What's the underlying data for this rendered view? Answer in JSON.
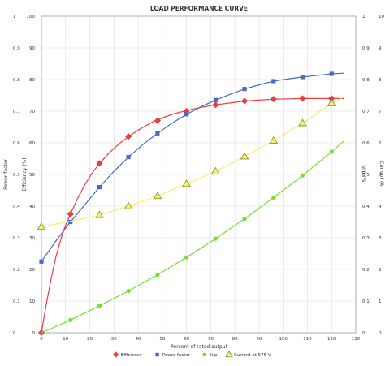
{
  "chart_data": {
    "type": "line",
    "title": "LOAD PERFORMANCE CURVE",
    "xlabel": "Percent of rated output",
    "xlim": [
      0,
      130
    ],
    "xticks": [
      0,
      10,
      20,
      30,
      40,
      50,
      60,
      70,
      80,
      90,
      100,
      110,
      120,
      130
    ],
    "grid": true,
    "legend_position": "bottom",
    "axes": {
      "left_outer": {
        "label": "Power factor",
        "ylim": [
          0,
          1
        ],
        "ticks": [
          "0",
          "0.1",
          "0.2",
          "0.3",
          "0.4",
          "0.5",
          "0.6",
          "0.7",
          "0.8",
          "0.9",
          "1"
        ]
      },
      "left_inner": {
        "label": "Efficiency (%)",
        "ylim": [
          0,
          100
        ],
        "ticks": [
          "0",
          "10",
          "20",
          "30",
          "40",
          "50",
          "60",
          "70",
          "80",
          "90",
          "100"
        ]
      },
      "right_inner": {
        "label": "Slip (%)",
        "ylim": [
          0,
          1
        ],
        "ticks": [
          "0",
          "0.1",
          "0.2",
          "0.3",
          "0.4",
          "0.5",
          "0.6",
          "0.7",
          "0.8",
          "0.9",
          "1"
        ]
      },
      "right_outer": {
        "label": "Current (A)",
        "ylim": [
          0,
          10
        ],
        "ticks": [
          "0",
          "1",
          "2",
          "3",
          "4",
          "5",
          "6",
          "7",
          "8",
          "9",
          "10"
        ]
      }
    },
    "series": [
      {
        "name": "Efficiency",
        "axis": "left_inner",
        "color": "#ee3b3b",
        "marker": "diamond",
        "x": [
          0,
          12,
          24,
          36,
          48,
          60,
          72,
          84,
          96,
          108,
          120
        ],
        "values": [
          0,
          37.5,
          53.5,
          62,
          67,
          70,
          72,
          73.2,
          73.8,
          74,
          74
        ],
        "curve_x": [
          0,
          2,
          4,
          6,
          8,
          10,
          12,
          15,
          18,
          21,
          24,
          28,
          32,
          36,
          40,
          45,
          50,
          55,
          60,
          66,
          72,
          78,
          84,
          90,
          96,
          102,
          108,
          114,
          120,
          125
        ],
        "curve_y": [
          0,
          9,
          17,
          24,
          29.5,
          34,
          37.5,
          42.5,
          46.8,
          50.5,
          53.5,
          56.8,
          59.6,
          62,
          64,
          66.2,
          67.9,
          69.2,
          70.2,
          71.2,
          72,
          72.6,
          73.2,
          73.5,
          73.8,
          73.9,
          74,
          74,
          74,
          74
        ]
      },
      {
        "name": "Power factor",
        "axis": "left_outer",
        "color": "#4a67c9",
        "marker": "square",
        "x": [
          0,
          12,
          24,
          36,
          48,
          60,
          72,
          84,
          96,
          108,
          120
        ],
        "values": [
          0.225,
          0.35,
          0.46,
          0.555,
          0.63,
          0.69,
          0.735,
          0.77,
          0.795,
          0.808,
          0.818
        ],
        "curve_x": [
          0,
          6,
          12,
          18,
          24,
          30,
          36,
          42,
          48,
          54,
          60,
          66,
          72,
          78,
          84,
          90,
          96,
          102,
          108,
          114,
          120,
          125
        ],
        "curve_y": [
          0.225,
          0.29,
          0.35,
          0.405,
          0.46,
          0.51,
          0.555,
          0.595,
          0.63,
          0.662,
          0.69,
          0.714,
          0.735,
          0.753,
          0.77,
          0.783,
          0.795,
          0.802,
          0.808,
          0.813,
          0.818,
          0.82
        ]
      },
      {
        "name": "Slip",
        "axis": "right_inner",
        "color": "#77dd33",
        "marker": "circle",
        "x": [
          12,
          24,
          36,
          48,
          60,
          72,
          84,
          96,
          108,
          120
        ],
        "values": [
          0.04,
          0.085,
          0.132,
          0.183,
          0.238,
          0.297,
          0.36,
          0.427,
          0.497,
          0.572
        ],
        "curve_x": [
          0,
          12,
          24,
          36,
          48,
          60,
          72,
          84,
          96,
          108,
          120,
          125
        ],
        "curve_y": [
          0,
          0.04,
          0.085,
          0.132,
          0.183,
          0.238,
          0.297,
          0.36,
          0.427,
          0.497,
          0.572,
          0.605
        ]
      },
      {
        "name": "Current at 575 V",
        "axis": "right_outer",
        "color": "#f2f26a",
        "marker": "triangle",
        "x": [
          0,
          24,
          36,
          48,
          60,
          72,
          84,
          96,
          108,
          120
        ],
        "values": [
          3.35,
          3.72,
          4.0,
          4.32,
          4.7,
          5.1,
          5.57,
          6.07,
          6.62,
          7.25
        ],
        "curve_x": [
          0,
          12,
          24,
          36,
          48,
          60,
          72,
          84,
          96,
          108,
          120,
          125
        ],
        "curve_y": [
          3.35,
          3.52,
          3.72,
          4.0,
          4.32,
          4.7,
          5.1,
          5.57,
          6.07,
          6.62,
          7.25,
          7.45
        ]
      }
    ]
  }
}
